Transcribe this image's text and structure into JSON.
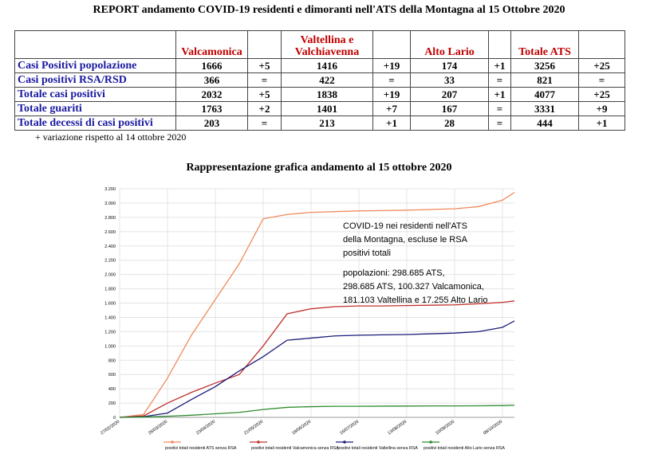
{
  "title": "REPORT andamento COVID-19 residenti e dimoranti nell'ATS della Montagna al 15 Ottobre 2020",
  "table": {
    "groups": [
      "Valcamonica",
      "Valtellina e Valchiavenna",
      "Alto Lario",
      "Totale ATS"
    ],
    "rows": [
      [
        "Casi Positivi popolazione",
        "1666",
        "+5",
        "1416",
        "+19",
        "174",
        "+1",
        "3256",
        "+25"
      ],
      [
        "Casi positivi RSA/RSD",
        "366",
        "=",
        "422",
        "=",
        "33",
        "=",
        "821",
        "="
      ],
      [
        "Totale casi positivi",
        "2032",
        "+5",
        "1838",
        "+19",
        "207",
        "+1",
        "4077",
        "+25"
      ],
      [
        "Totale guariti",
        "1763",
        "+2",
        "1401",
        "+7",
        "167",
        "=",
        "3331",
        "+9"
      ],
      [
        "Totale decessi di casi positivi",
        "203",
        "=",
        "213",
        "+1",
        "28",
        "=",
        "444",
        "+1"
      ]
    ]
  },
  "note": "+  variazione rispetto al 14 ottobre 2020",
  "chart_data": {
    "type": "line",
    "title": "Rappresentazione grafica andamento al 15 ottobre 2020",
    "annotation": [
      "COVID-19 nei residenti nell'ATS",
      "della Montagna, escluse le RSA",
      "positivi totali",
      "popolazioni: 298.685 ATS,",
      "298.685 ATS, 100.327 Valcamonica,",
      "181.103 Valtellina e 17.255 Alto Lario"
    ],
    "x": [
      "27/02/2020",
      "12/03/2020",
      "26/03/2020",
      "09/04/2020",
      "23/04/2020",
      "07/05/2020",
      "21/05/2020",
      "04/06/2020",
      "18/06/2020",
      "02/07/2020",
      "16/07/2020",
      "30/07/2020",
      "13/08/2020",
      "27/08/2020",
      "10/09/2020",
      "24/09/2020",
      "08/10/2020",
      "15/10/2020"
    ],
    "xlim": [
      "27/02/2020",
      "15/10/2020"
    ],
    "xticks": [
      "27/02/2020",
      "26/03/2020",
      "23/04/2020",
      "21/05/2020",
      "18/06/2020",
      "16/07/2020",
      "13/08/2020",
      "10/09/2020",
      "08/10/2020"
    ],
    "ylim": [
      0,
      3200
    ],
    "yticks": [
      0,
      200,
      400,
      600,
      800,
      {
        "value": 1000,
        "label": "1.000"
      },
      {
        "value": 1200,
        "label": "1.200"
      },
      {
        "value": 1400,
        "label": "1.400"
      },
      {
        "value": 1600,
        "label": "1.600"
      },
      {
        "value": 1800,
        "label": "1.800"
      },
      {
        "value": 2000,
        "label": "2.000"
      },
      {
        "value": 2200,
        "label": "2.200"
      },
      {
        "value": 2400,
        "label": "2.400"
      },
      {
        "value": 2600,
        "label": "2.600"
      },
      {
        "value": 2800,
        "label": "2.800"
      },
      {
        "value": 3000,
        "label": "3.000"
      },
      {
        "value": 3200,
        "label": "3.200"
      }
    ],
    "grid": true,
    "series": [
      {
        "name": "positivi totali residenti ATS senza RSA",
        "color": "#f08a5d",
        "values": [
          0,
          40,
          550,
          1150,
          1650,
          2150,
          2780,
          2840,
          2870,
          2880,
          2890,
          2895,
          2900,
          2910,
          2920,
          2950,
          3040,
          3150
        ]
      },
      {
        "name": "positivi totali residenti Valcamonica senza RSA",
        "color": "#c0302a",
        "values": [
          0,
          20,
          200,
          350,
          480,
          600,
          1000,
          1450,
          1520,
          1550,
          1560,
          1560,
          1565,
          1570,
          1575,
          1590,
          1610,
          1630
        ]
      },
      {
        "name": "positivi totali residenti Valtellina senza RSA",
        "color": "#1c1c7a",
        "values": [
          0,
          10,
          60,
          250,
          430,
          650,
          850,
          1080,
          1110,
          1140,
          1150,
          1155,
          1160,
          1170,
          1180,
          1200,
          1260,
          1350
        ]
      },
      {
        "name": "positivi totali residenti Alto Lario senza RSA",
        "color": "#2e8b2e",
        "values": [
          0,
          5,
          15,
          30,
          50,
          70,
          110,
          140,
          150,
          155,
          155,
          157,
          158,
          160,
          160,
          162,
          165,
          170
        ]
      }
    ]
  }
}
